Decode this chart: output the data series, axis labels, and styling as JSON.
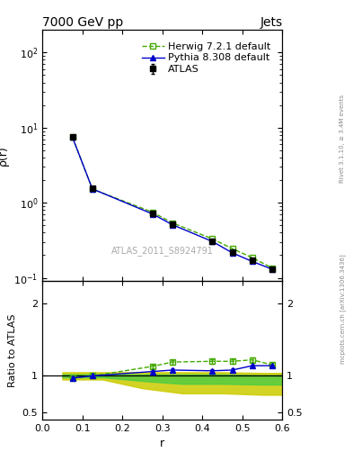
{
  "title_left": "7000 GeV pp",
  "title_right": "Jets",
  "ylabel_main": "ρ(r)",
  "ylabel_ratio": "Ratio to ATLAS",
  "xlabel": "r",
  "watermark": "ATLAS_2011_S8924791",
  "right_label_top": "Rivet 3.1.10, ≥ 3.4M events",
  "right_label_bottom": "mcplots.cern.ch [arXiv:1306.3436]",
  "r_values": [
    0.075,
    0.125,
    0.275,
    0.325,
    0.425,
    0.475,
    0.525,
    0.575
  ],
  "atlas_y": [
    7.5,
    1.55,
    0.72,
    0.52,
    0.31,
    0.22,
    0.17,
    0.13
  ],
  "atlas_yerr": [
    0.15,
    0.04,
    0.02,
    0.015,
    0.01,
    0.008,
    0.006,
    0.005
  ],
  "herwig_y": [
    7.5,
    1.52,
    0.75,
    0.54,
    0.33,
    0.245,
    0.185,
    0.135
  ],
  "herwig_ratio": [
    0.97,
    1.0,
    1.13,
    1.19,
    1.2,
    1.2,
    1.22,
    1.15
  ],
  "herwig_ratio_err": [
    0.02,
    0.01,
    0.03,
    0.03,
    0.03,
    0.03,
    0.03,
    0.03
  ],
  "pythia_y": [
    7.5,
    1.53,
    0.71,
    0.51,
    0.305,
    0.215,
    0.165,
    0.13
  ],
  "pythia_ratio": [
    0.97,
    1.0,
    1.06,
    1.08,
    1.07,
    1.08,
    1.14,
    1.14
  ],
  "pythia_ratio_err": [
    0.02,
    0.01,
    0.02,
    0.02,
    0.02,
    0.02,
    0.02,
    0.02
  ],
  "atlas_band_x": [
    0.05,
    0.15,
    0.25,
    0.35,
    0.45,
    0.55,
    0.6
  ],
  "atlas_green_lo": [
    0.98,
    0.98,
    0.93,
    0.89,
    0.89,
    0.88,
    0.88
  ],
  "atlas_green_hi": [
    1.02,
    1.02,
    1.02,
    1.02,
    1.02,
    1.01,
    1.01
  ],
  "atlas_yellow_lo": [
    0.95,
    0.95,
    0.83,
    0.76,
    0.76,
    0.74,
    0.74
  ],
  "atlas_yellow_hi": [
    1.05,
    1.05,
    1.05,
    1.05,
    1.05,
    1.04,
    1.04
  ],
  "xlim": [
    0.0,
    0.6
  ],
  "ylim_main_log": [
    0.09,
    200
  ],
  "ylim_ratio": [
    0.4,
    2.3
  ],
  "ratio_yticks": [
    0.5,
    1.0,
    2.0
  ],
  "ratio_yticklabels": [
    "0.5",
    "1",
    "2"
  ],
  "color_atlas": "#000000",
  "color_herwig": "#44aa00",
  "color_pythia": "#0000cc",
  "color_green_band": "#44cc44",
  "color_yellow_band": "#cccc00",
  "marker_atlas": "s",
  "marker_herwig": "s",
  "marker_pythia": "^",
  "title_fontsize": 10,
  "label_fontsize": 9,
  "tick_fontsize": 8,
  "legend_fontsize": 8,
  "watermark_fontsize": 7
}
